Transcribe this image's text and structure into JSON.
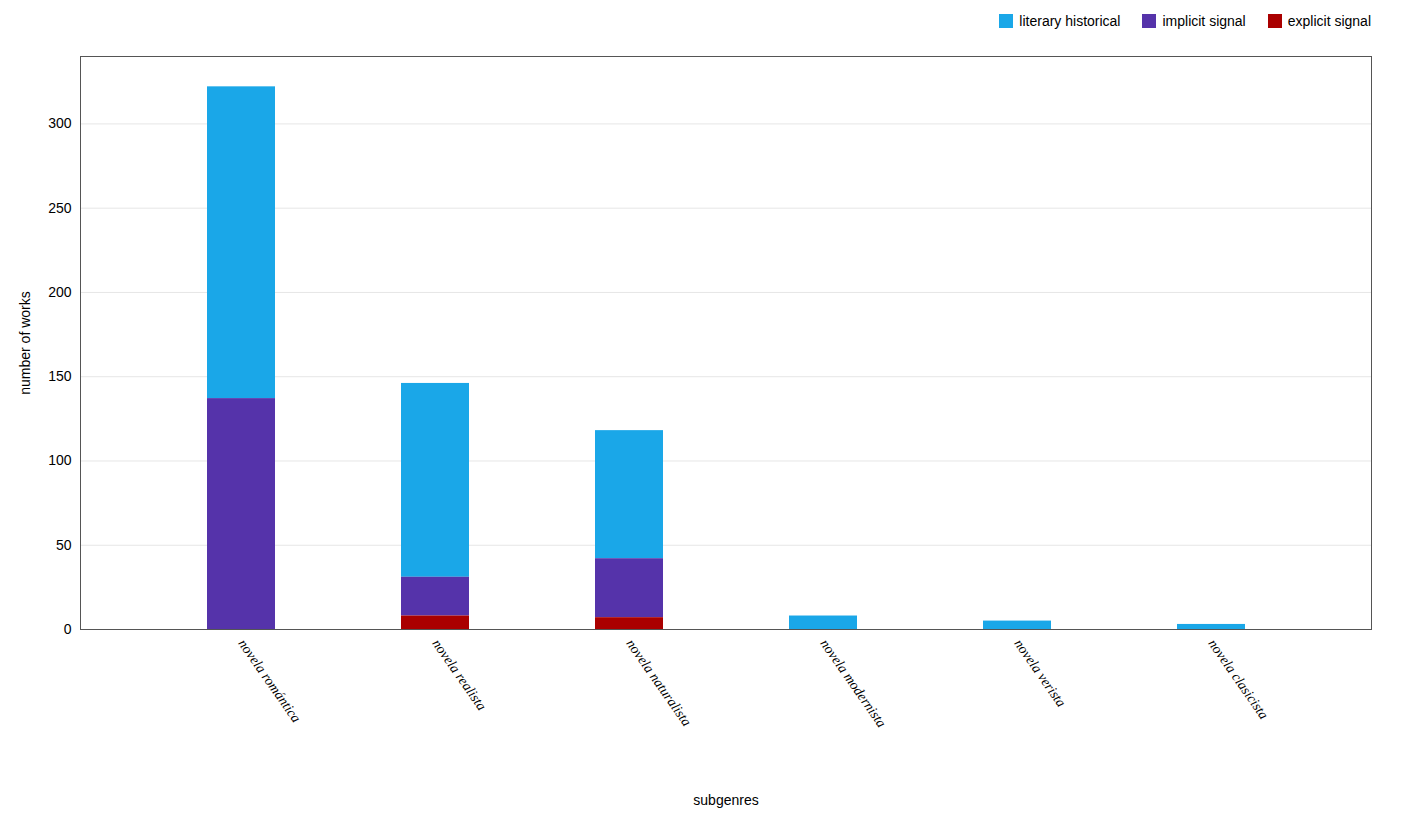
{
  "chart_data": {
    "type": "bar",
    "stacked": true,
    "categories": [
      "novela romántica",
      "novela realista",
      "novela naturalista",
      "novela modernista",
      "novela verista",
      "novela clasicista"
    ],
    "series": [
      {
        "name": "literary historical",
        "color": "#1aa7e8",
        "values": [
          185,
          115,
          76,
          8,
          5,
          3
        ]
      },
      {
        "name": "implicit signal",
        "color": "#5533aa",
        "values": [
          137,
          23,
          35,
          0,
          0,
          0
        ]
      },
      {
        "name": "explicit signal",
        "color": "#aa0000",
        "values": [
          0,
          8,
          7,
          0,
          0,
          0
        ]
      }
    ],
    "xlabel": "subgenres",
    "ylabel": "number of works",
    "ylim": [
      0,
      340
    ],
    "yticks": [
      0,
      50,
      100,
      150,
      200,
      250,
      300
    ],
    "grid": true,
    "legend": "upper right"
  }
}
